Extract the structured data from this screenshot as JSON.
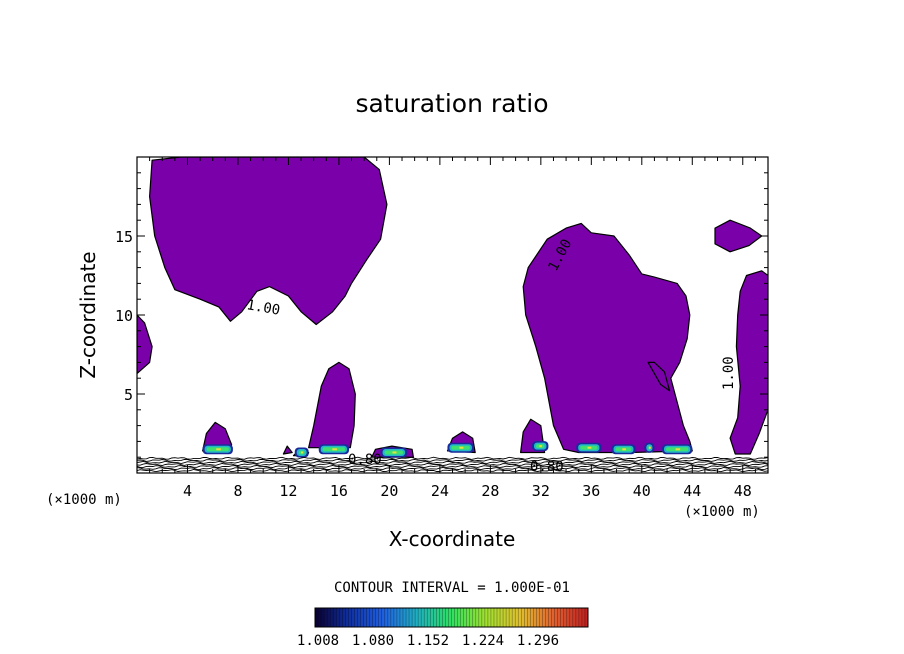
{
  "chart_data": {
    "type": "contour",
    "title": "saturation ratio",
    "xlabel": "X-coordinate",
    "ylabel": "Z-coordinate",
    "x_unit_left": "(×1000 m)",
    "x_unit_right": "(×1000 m)",
    "xlim": [
      0,
      50
    ],
    "ylim": [
      0,
      20
    ],
    "xticks": [
      4,
      8,
      12,
      16,
      20,
      24,
      28,
      32,
      36,
      40,
      44,
      48
    ],
    "yticks": [
      5,
      10,
      15
    ],
    "contour_interval_text": "CONTOUR INTERVAL = 1.000E-01",
    "contour_labels": [
      "1.00",
      "1.00",
      "1.00",
      "0.80",
      "0.80"
    ],
    "colorbar": {
      "ticks": [
        "1.008",
        "1.080",
        "1.152",
        "1.224",
        "1.296"
      ],
      "colors": [
        "#0a0030",
        "#1030a0",
        "#2060e0",
        "#20b0c0",
        "#30e060",
        "#a0e030",
        "#e0c030",
        "#e06030",
        "#c02020"
      ]
    },
    "fill_color": "#7a00aa",
    "regions": [
      {
        "name": "upper-left-cloud",
        "points": [
          [
            1.2,
            19.8
          ],
          [
            3.5,
            20
          ],
          [
            9,
            20
          ],
          [
            16,
            20
          ],
          [
            18,
            20
          ],
          [
            19.2,
            19.2
          ],
          [
            19.8,
            17
          ],
          [
            19.3,
            14.8
          ],
          [
            18.2,
            13.5
          ],
          [
            17,
            12
          ],
          [
            16.5,
            11.2
          ],
          [
            15.5,
            10.2
          ],
          [
            14.2,
            9.4
          ],
          [
            13,
            10.2
          ],
          [
            12,
            11.2
          ],
          [
            10.5,
            11.8
          ],
          [
            9.5,
            11.5
          ],
          [
            8.3,
            10.2
          ],
          [
            7.4,
            9.6
          ],
          [
            6.5,
            10.5
          ],
          [
            5,
            11
          ],
          [
            3,
            11.6
          ],
          [
            2.2,
            13
          ],
          [
            1.4,
            15
          ],
          [
            1,
            17.5
          ]
        ]
      },
      {
        "name": "left-edge-cloud",
        "points": [
          [
            0,
            10
          ],
          [
            0.6,
            9.5
          ],
          [
            1.2,
            8
          ],
          [
            1,
            7
          ],
          [
            0,
            6.3
          ]
        ]
      },
      {
        "name": "right-large-cloud",
        "points": [
          [
            31,
            13
          ],
          [
            32.5,
            14.8
          ],
          [
            34,
            15.5
          ],
          [
            35.2,
            15.8
          ],
          [
            36,
            15.2
          ],
          [
            37.8,
            15
          ],
          [
            39,
            13.8
          ],
          [
            40,
            12.6
          ],
          [
            41,
            12.4
          ],
          [
            42.8,
            12
          ],
          [
            43.5,
            11.2
          ],
          [
            43.8,
            10
          ],
          [
            43.6,
            8.5
          ],
          [
            43,
            7
          ],
          [
            42.3,
            6
          ],
          [
            42.8,
            4.5
          ],
          [
            43.3,
            3
          ],
          [
            43.8,
            2
          ],
          [
            44,
            1.4
          ],
          [
            39,
            1.3
          ],
          [
            35,
            1.3
          ],
          [
            33.8,
            1.5
          ],
          [
            33,
            3
          ],
          [
            32.3,
            6
          ],
          [
            31.6,
            8
          ],
          [
            30.8,
            10
          ],
          [
            30.6,
            11.8
          ]
        ]
      },
      {
        "name": "right-notch-cloud",
        "points": [
          [
            40.5,
            7
          ],
          [
            41.5,
            5.6
          ],
          [
            42.2,
            5.2
          ],
          [
            41.8,
            6.4
          ],
          [
            41,
            7
          ]
        ]
      },
      {
        "name": "far-right-top-cloud",
        "points": [
          [
            45.8,
            15.5
          ],
          [
            47,
            16
          ],
          [
            48.6,
            15.5
          ],
          [
            49.5,
            15
          ],
          [
            48.5,
            14.4
          ],
          [
            47,
            14
          ],
          [
            45.8,
            14.5
          ]
        ]
      },
      {
        "name": "far-right-cloud",
        "points": [
          [
            48.3,
            12.5
          ],
          [
            49.5,
            12.8
          ],
          [
            50,
            12.5
          ],
          [
            50,
            4
          ],
          [
            49.3,
            2.5
          ],
          [
            48.6,
            1.2
          ],
          [
            47.4,
            1.2
          ],
          [
            47,
            2.2
          ],
          [
            47.6,
            3.5
          ],
          [
            47.8,
            5.5
          ],
          [
            47.5,
            8
          ],
          [
            47.6,
            10
          ],
          [
            47.8,
            11.5
          ]
        ]
      },
      {
        "name": "bump-16k",
        "points": [
          [
            13.6,
            1.6
          ],
          [
            14,
            3
          ],
          [
            14.6,
            5.5
          ],
          [
            15.2,
            6.6
          ],
          [
            16,
            7
          ],
          [
            16.8,
            6.6
          ],
          [
            17.3,
            5
          ],
          [
            17.2,
            3
          ],
          [
            16.9,
            1.6
          ]
        ]
      },
      {
        "name": "bump-6k",
        "points": [
          [
            5.2,
            1.4
          ],
          [
            5.5,
            2.5
          ],
          [
            6.2,
            3.2
          ],
          [
            7,
            2.8
          ],
          [
            7.5,
            1.8
          ],
          [
            7.4,
            1.3
          ]
        ]
      },
      {
        "name": "bump-25k",
        "points": [
          [
            24.6,
            1.4
          ],
          [
            25,
            2.2
          ],
          [
            25.8,
            2.6
          ],
          [
            26.6,
            2.2
          ],
          [
            26.8,
            1.3
          ]
        ]
      },
      {
        "name": "bump-31k",
        "points": [
          [
            30.4,
            1.3
          ],
          [
            30.6,
            2.6
          ],
          [
            31.2,
            3.4
          ],
          [
            32,
            3
          ],
          [
            32.3,
            1.3
          ]
        ]
      },
      {
        "name": "speck-13k",
        "points": [
          [
            11.6,
            1.2
          ],
          [
            11.9,
            1.7
          ],
          [
            12.3,
            1.3
          ]
        ]
      },
      {
        "name": "low-cloud-20k",
        "points": [
          [
            18.6,
            1
          ],
          [
            18.9,
            1.5
          ],
          [
            20.2,
            1.7
          ],
          [
            21.8,
            1.5
          ],
          [
            21.9,
            1
          ]
        ]
      },
      {
        "name": "low-cloud-13k",
        "points": [
          [
            12.4,
            1.1
          ],
          [
            12.8,
            1.4
          ],
          [
            13.6,
            1.3
          ],
          [
            13.5,
            1.1
          ]
        ]
      }
    ],
    "hotspots": [
      {
        "x1": 5.2,
        "x2": 7.6,
        "y": 1.5
      },
      {
        "x1": 12.5,
        "x2": 13.6,
        "y": 1.3
      },
      {
        "x1": 14.4,
        "x2": 16.8,
        "y": 1.5
      },
      {
        "x1": 19.3,
        "x2": 21.4,
        "y": 1.3
      },
      {
        "x1": 24.6,
        "x2": 26.7,
        "y": 1.6
      },
      {
        "x1": 31.3,
        "x2": 32.6,
        "y": 1.7
      },
      {
        "x1": 34.8,
        "x2": 36.8,
        "y": 1.6
      },
      {
        "x1": 37.6,
        "x2": 39.5,
        "y": 1.5
      },
      {
        "x1": 40.2,
        "x2": 41.0,
        "y": 1.6
      },
      {
        "x1": 41.6,
        "x2": 44.0,
        "y": 1.5
      }
    ]
  }
}
